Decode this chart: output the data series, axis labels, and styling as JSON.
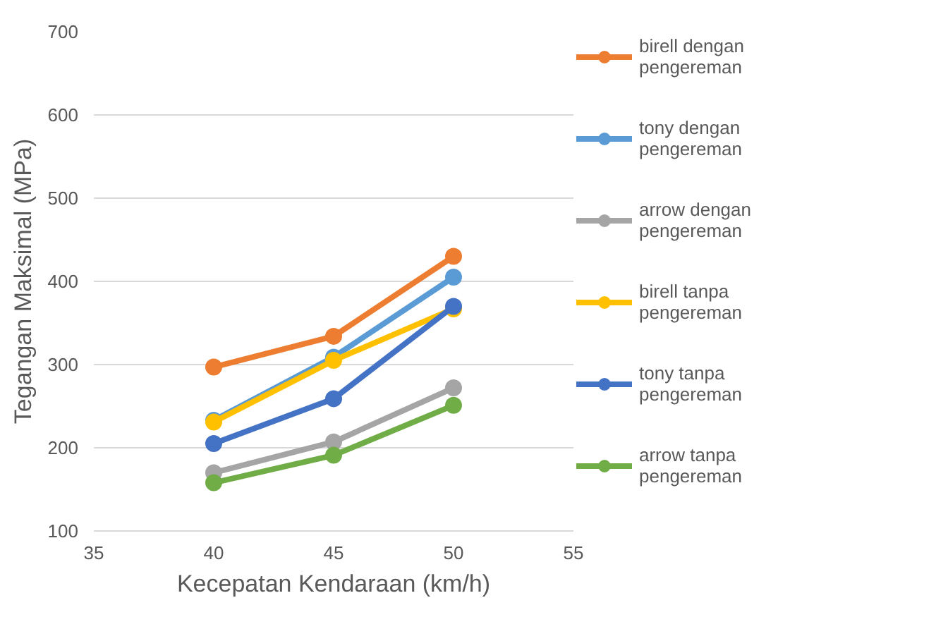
{
  "chart_data": {
    "type": "line",
    "xlabel": "Kecepatan Kendaraan (km/h)",
    "ylabel": "Tegangan Maksimal (MPa)",
    "x": [
      40,
      45,
      50
    ],
    "xlim": [
      35,
      55
    ],
    "xticks": [
      35,
      40,
      45,
      50,
      55
    ],
    "ylim": [
      100,
      700
    ],
    "yticks": [
      100,
      200,
      300,
      400,
      500,
      600,
      700
    ],
    "grid": "y",
    "legend": "right",
    "marker": "circle",
    "line_style": "solid",
    "series": [
      {
        "name": "birell dengan pengereman",
        "color": "#ed7d31",
        "values": [
          297,
          334,
          430
        ]
      },
      {
        "name": "tony dengan pengereman",
        "color": "#5b9bd5",
        "values": [
          233,
          309,
          405
        ]
      },
      {
        "name": "arrow dengan pengereman",
        "color": "#a5a5a5",
        "values": [
          170,
          207,
          272
        ]
      },
      {
        "name": "birell tanpa pengereman",
        "color": "#ffc000",
        "values": [
          231,
          305,
          367
        ]
      },
      {
        "name": "tony tanpa pengereman",
        "color": "#4472c4",
        "values": [
          205,
          259,
          370
        ]
      },
      {
        "name": "arrow tanpa pengereman",
        "color": "#70ad47",
        "values": [
          158,
          191,
          251
        ]
      }
    ]
  }
}
